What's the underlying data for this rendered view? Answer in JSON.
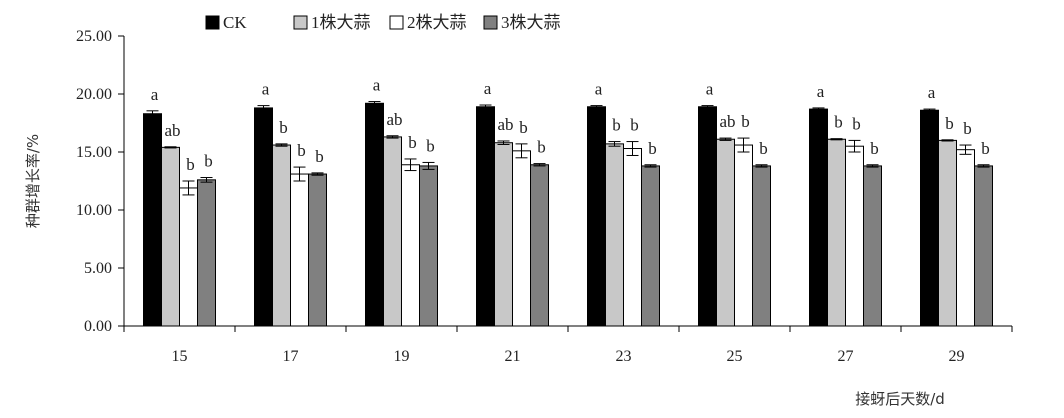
{
  "chart_data": {
    "type": "bar",
    "title": "",
    "xlabel": "接蚜后天数/d",
    "ylabel": "种群增长率/%",
    "ylim": [
      0,
      25
    ],
    "yticks": [
      "0.00",
      "5.00",
      "10.00",
      "15.00",
      "20.00",
      "25.00"
    ],
    "categories": [
      "15",
      "17",
      "19",
      "21",
      "23",
      "25",
      "27",
      "29"
    ],
    "legend_position": "top",
    "grid": false,
    "series": [
      {
        "name": "CK",
        "color": "#000000",
        "values": [
          18.3,
          18.8,
          19.2,
          18.9,
          18.9,
          18.9,
          18.7,
          18.6
        ],
        "errors": [
          0.25,
          0.2,
          0.15,
          0.15,
          0.1,
          0.1,
          0.1,
          0.1
        ],
        "labels": [
          "a",
          "a",
          "a",
          "a",
          "a",
          "a",
          "a",
          "a"
        ]
      },
      {
        "name": "1株大蒜",
        "color": "#c8c8c8",
        "values": [
          15.4,
          15.6,
          16.3,
          15.8,
          15.7,
          16.1,
          16.1,
          16.0
        ],
        "errors": [
          0.05,
          0.1,
          0.1,
          0.15,
          0.2,
          0.1,
          0.05,
          0.05
        ],
        "labels": [
          "ab",
          "b",
          "ab",
          "ab",
          "b",
          "ab",
          "b",
          "b"
        ]
      },
      {
        "name": "2株大蒜",
        "color": "#ffffff",
        "values": [
          11.9,
          13.1,
          13.9,
          15.1,
          15.3,
          15.6,
          15.5,
          15.2
        ],
        "errors": [
          0.6,
          0.6,
          0.5,
          0.6,
          0.6,
          0.6,
          0.5,
          0.4
        ],
        "labels": [
          "b",
          "b",
          "b",
          "b",
          "b",
          "b",
          "b",
          "b"
        ]
      },
      {
        "name": "3株大蒜",
        "color": "#808080",
        "values": [
          12.6,
          13.1,
          13.8,
          13.9,
          13.8,
          13.8,
          13.8,
          13.8
        ],
        "errors": [
          0.2,
          0.1,
          0.3,
          0.1,
          0.1,
          0.1,
          0.1,
          0.1
        ],
        "labels": [
          "b",
          "b",
          "b",
          "b",
          "b",
          "b",
          "b",
          "b"
        ]
      }
    ]
  }
}
